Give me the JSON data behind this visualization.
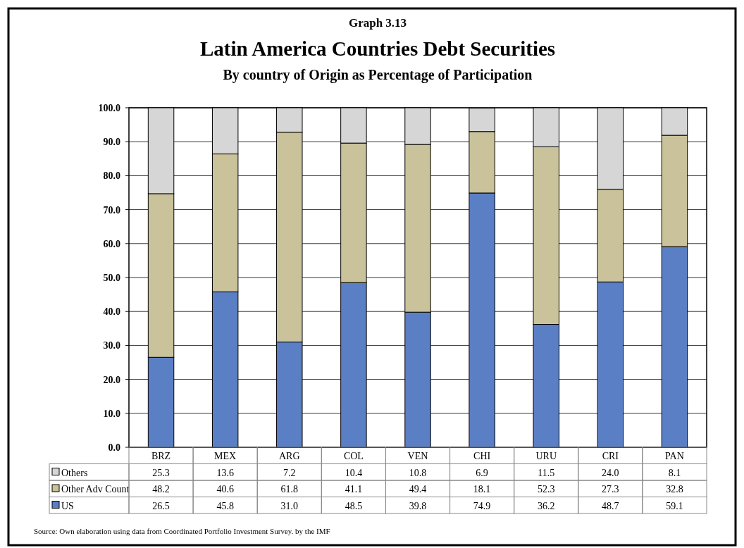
{
  "chart_data": {
    "type": "bar",
    "stacked": true,
    "title": "Latin America Countries Debt Securities",
    "subtitle": "By country of Origin as Percentage of Participation",
    "annotations": [
      "Graph 3.13",
      "Source: Own elaboration  using data from Coordinated Portfolio Investment  Survey. by the IMF"
    ],
    "categories": [
      "BRZ",
      "MEX",
      "ARG",
      "COL",
      "VEN",
      "CHI",
      "URU",
      "CRI",
      "PAN"
    ],
    "series": [
      {
        "name": "US",
        "color": "#5b7fc4",
        "values": [
          26.5,
          45.8,
          31.0,
          48.5,
          39.8,
          74.9,
          36.2,
          48.7,
          59.1
        ],
        "value_labels": [
          "26.5",
          "45.8",
          "31.0",
          "48.5",
          "39.8",
          "74.9",
          "36.2",
          "48.7",
          "59.1"
        ]
      },
      {
        "name": "Other Adv Count",
        "color": "#c9c29a",
        "values": [
          48.2,
          40.6,
          61.8,
          41.1,
          49.4,
          18.1,
          52.3,
          27.3,
          32.8
        ],
        "value_labels": [
          "48.2",
          "40.6",
          "61.8",
          "41.1",
          "49.4",
          "18.1",
          "52.3",
          "27.3",
          "32.8"
        ]
      },
      {
        "name": "Others",
        "color": "#d6d6d6",
        "values": [
          25.3,
          13.6,
          7.2,
          10.4,
          10.8,
          6.9,
          11.5,
          24.0,
          8.1
        ],
        "value_labels": [
          "25.3",
          "13.6",
          "7.2",
          "10.4",
          "10.8",
          "6.9",
          "11.5",
          "24.0",
          "8.1"
        ]
      }
    ],
    "ylim": [
      0,
      100
    ],
    "yticks": [
      {
        "value": 0,
        "label": "0.0"
      },
      {
        "value": 10,
        "label": "10.0"
      },
      {
        "value": 20,
        "label": "20.0"
      },
      {
        "value": 30,
        "label": "30.0"
      },
      {
        "value": 40,
        "label": "40.0"
      },
      {
        "value": 50,
        "label": "50.0"
      },
      {
        "value": 60,
        "label": "60.0"
      },
      {
        "value": 70,
        "label": "70.0"
      },
      {
        "value": 80,
        "label": "80.0"
      },
      {
        "value": 90,
        "label": "90.0"
      },
      {
        "value": 100,
        "label": "100.0"
      }
    ],
    "grid": "y",
    "legend": "bottom left"
  }
}
